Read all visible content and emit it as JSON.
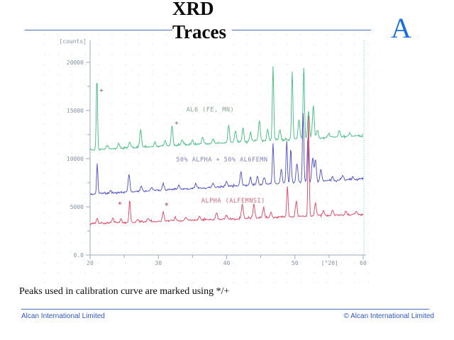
{
  "slide": {
    "title_line1": "XRD",
    "title_line2": "Traces",
    "corner_letter": "A",
    "note": "Peaks used in calibration curve are marked using */+",
    "footer_left": "Alcan International Limited",
    "footer_right": "© Alcan International Limited",
    "accent_line_color": "#4a6fc0",
    "footer_text_color": "#2f55cd",
    "corner_letter_color": "#1a6fe0"
  },
  "chart_data": {
    "type": "line",
    "title": "",
    "xlabel": "[°2θ]",
    "ylabel": "[counts]",
    "xlim": [
      20,
      60
    ],
    "ylim": [
      0,
      22000
    ],
    "grid": false,
    "x_major_ticks": [
      {
        "v": 20,
        "label": "20"
      },
      {
        "v": 30,
        "label": "30"
      },
      {
        "v": 40,
        "label": "40"
      },
      {
        "v": 50,
        "label": "50"
      },
      {
        "v": 60,
        "label": "60"
      }
    ],
    "x_minor_ticks": [
      25,
      35,
      45,
      55
    ],
    "y_major_ticks": [
      {
        "v": 0,
        "label": "0.0"
      },
      {
        "v": 5000,
        "label": "5000"
      },
      {
        "v": 10000,
        "label": "10000"
      },
      {
        "v": 15000,
        "label": "15000"
      },
      {
        "v": 20000,
        "label": "20000"
      }
    ],
    "y_minor_ticks": [
      2500,
      7500,
      12500,
      17500
    ],
    "xlabel_pos": 55.1,
    "axis_color": "#9aaabb",
    "tick_text_color": "#8493a6",
    "scan_edge_color": "#6fd0c5",
    "series": [
      {
        "name": "AL6 (FE, MN)",
        "color": "#3dbd7d",
        "label_color": "#84a58e",
        "label_pos": {
          "x": 34.1,
          "y": 14900
        },
        "baseline": [
          10900,
          12400
        ],
        "peaks": [
          [
            21.0,
            7600,
            0.09
          ],
          [
            22.5,
            400
          ],
          [
            24.2,
            500
          ],
          [
            25.8,
            600
          ],
          [
            27.4,
            1900
          ],
          [
            29.5,
            500
          ],
          [
            31.0,
            600
          ],
          [
            32.0,
            2100
          ],
          [
            33.5,
            500
          ],
          [
            35.0,
            450
          ],
          [
            36.5,
            700
          ],
          [
            38.0,
            500
          ],
          [
            40.3,
            1800
          ],
          [
            41.3,
            1200
          ],
          [
            42.4,
            1500
          ],
          [
            43.5,
            900
          ],
          [
            44.8,
            2100
          ],
          [
            46.0,
            1200
          ],
          [
            46.8,
            7600,
            0.1
          ],
          [
            47.8,
            1100
          ],
          [
            49.6,
            7000,
            0.1
          ],
          [
            50.6,
            2000
          ],
          [
            51.3,
            7500,
            0.1
          ],
          [
            52.0,
            2800
          ],
          [
            52.7,
            3400
          ],
          [
            53.3,
            800
          ],
          [
            55.0,
            400
          ],
          [
            56.5,
            700
          ],
          [
            58.0,
            300
          ]
        ]
      },
      {
        "name": "50% ALPHA + 50% AL6FEMN",
        "color": "#4a4ac8",
        "label_color": "#7f86b8",
        "label_pos": {
          "x": 32.6,
          "y": 9700
        },
        "baseline": [
          6300,
          7900
        ],
        "peaks": [
          [
            21.05,
            3200,
            0.09
          ],
          [
            23.0,
            300
          ],
          [
            25.7,
            1900
          ],
          [
            27.5,
            500
          ],
          [
            29.0,
            350
          ],
          [
            30.7,
            700
          ],
          [
            33.0,
            400
          ],
          [
            35.5,
            450
          ],
          [
            38.0,
            400
          ],
          [
            40.0,
            500
          ],
          [
            42.1,
            1500
          ],
          [
            43.5,
            800
          ],
          [
            44.5,
            900
          ],
          [
            45.5,
            700
          ],
          [
            46.8,
            4200,
            0.1
          ],
          [
            48.0,
            1500
          ],
          [
            48.8,
            4400,
            0.1
          ],
          [
            49.4,
            3500,
            0.1
          ],
          [
            50.3,
            2000
          ],
          [
            51.2,
            7100,
            0.1
          ],
          [
            51.9,
            4800,
            0.1
          ],
          [
            52.6,
            2500
          ],
          [
            53.0,
            2300
          ],
          [
            53.8,
            1200
          ],
          [
            55.5,
            400
          ],
          [
            57.0,
            500
          ],
          [
            58.5,
            300
          ]
        ]
      },
      {
        "name": "ALPHA (ALFEMNSI)",
        "color": "#e04060",
        "label_color": "#d06a7e",
        "label_pos": {
          "x": 36.3,
          "y": 5440
        },
        "baseline": [
          3250,
          4200
        ],
        "peaks": [
          [
            21.05,
            500
          ],
          [
            23.3,
            500
          ],
          [
            24.5,
            400
          ],
          [
            25.8,
            2300,
            0.1
          ],
          [
            27.0,
            300
          ],
          [
            28.5,
            350
          ],
          [
            30.7,
            950
          ],
          [
            32.5,
            400
          ],
          [
            34.0,
            350
          ],
          [
            36.0,
            400
          ],
          [
            38.5,
            700
          ],
          [
            40.0,
            400
          ],
          [
            42.3,
            1500
          ],
          [
            44.0,
            1500
          ],
          [
            45.4,
            1000
          ],
          [
            46.5,
            600
          ],
          [
            48.9,
            3200,
            0.1
          ],
          [
            50.2,
            1600
          ],
          [
            52.0,
            10500,
            0.09
          ],
          [
            53.0,
            1400
          ],
          [
            54.2,
            500
          ],
          [
            55.5,
            600
          ],
          [
            57.5,
            400
          ],
          [
            59.0,
            300
          ]
        ]
      }
    ],
    "markers": [
      {
        "glyph": "+",
        "x": 21.66,
        "y": 17100,
        "color": "#55606e"
      },
      {
        "glyph": "+",
        "x": 32.67,
        "y": 13700,
        "color": "#55606e"
      },
      {
        "glyph": "*",
        "x": 24.36,
        "y": 5400,
        "color": "#a03a4a"
      },
      {
        "glyph": "*",
        "x": 31.2,
        "y": 5300,
        "color": "#a03a4a"
      }
    ]
  }
}
